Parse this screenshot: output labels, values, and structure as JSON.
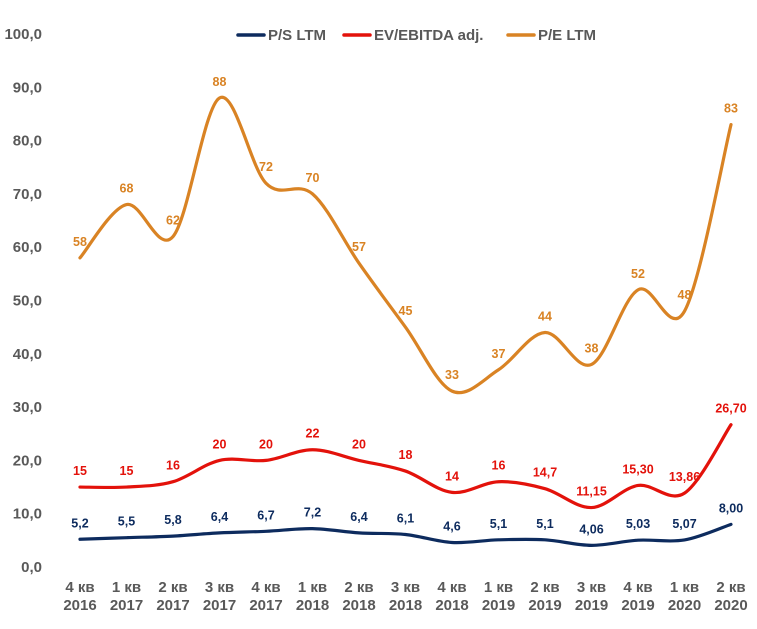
{
  "chart_data": {
    "type": "line",
    "categories": [
      [
        "4 кв",
        "2016"
      ],
      [
        "1 кв",
        "2017"
      ],
      [
        "2 кв",
        "2017"
      ],
      [
        "3 кв",
        "2017"
      ],
      [
        "4 кв",
        "2017"
      ],
      [
        "1 кв",
        "2018"
      ],
      [
        "2 кв",
        "2018"
      ],
      [
        "3 кв",
        "2018"
      ],
      [
        "4 кв",
        "2018"
      ],
      [
        "1 кв",
        "2019"
      ],
      [
        "2 кв",
        "2019"
      ],
      [
        "3 кв",
        "2019"
      ],
      [
        "4 кв",
        "2019"
      ],
      [
        "1 кв",
        "2020"
      ],
      [
        "2 кв",
        "2020"
      ]
    ],
    "ylim": [
      0,
      100
    ],
    "yticks": [
      "0,0",
      "10,0",
      "20,0",
      "30,0",
      "40,0",
      "50,0",
      "60,0",
      "70,0",
      "80,0",
      "90,0",
      "100,0"
    ],
    "grid": false,
    "legend_position": "top-center",
    "series": [
      {
        "name": "P/S LTM",
        "color": "#0d2b5e",
        "values": [
          5.2,
          5.5,
          5.8,
          6.4,
          6.7,
          7.2,
          6.4,
          6.1,
          4.6,
          5.1,
          5.1,
          4.06,
          5.03,
          5.07,
          8.0
        ],
        "labels": [
          "5,2",
          "5,5",
          "5,8",
          "6,4",
          "6,7",
          "7,2",
          "6,4",
          "6,1",
          "4,6",
          "5,1",
          "5,1",
          "4,06",
          "5,03",
          "5,07",
          "8,00"
        ]
      },
      {
        "name": "EV/EBITDA adj.",
        "color": "#e3120b",
        "values": [
          15,
          15,
          16,
          20,
          20,
          22,
          20,
          18,
          14,
          16,
          14.7,
          11.15,
          15.3,
          13.86,
          26.7
        ],
        "labels": [
          "15",
          "15",
          "16",
          "20",
          "20",
          "22",
          "20",
          "18",
          "14",
          "16",
          "14,7",
          "11,15",
          "15,30",
          "13,86",
          "26,70"
        ]
      },
      {
        "name": "P/E LTM",
        "color": "#d98324",
        "values": [
          58,
          68,
          62,
          88,
          72,
          70,
          57,
          45,
          33,
          37,
          44,
          38,
          52,
          48,
          83
        ],
        "labels": [
          "58",
          "68",
          "62",
          "88",
          "72",
          "70",
          "57",
          "45",
          "33",
          "37",
          "44",
          "38",
          "52",
          "48",
          "83"
        ]
      }
    ]
  }
}
